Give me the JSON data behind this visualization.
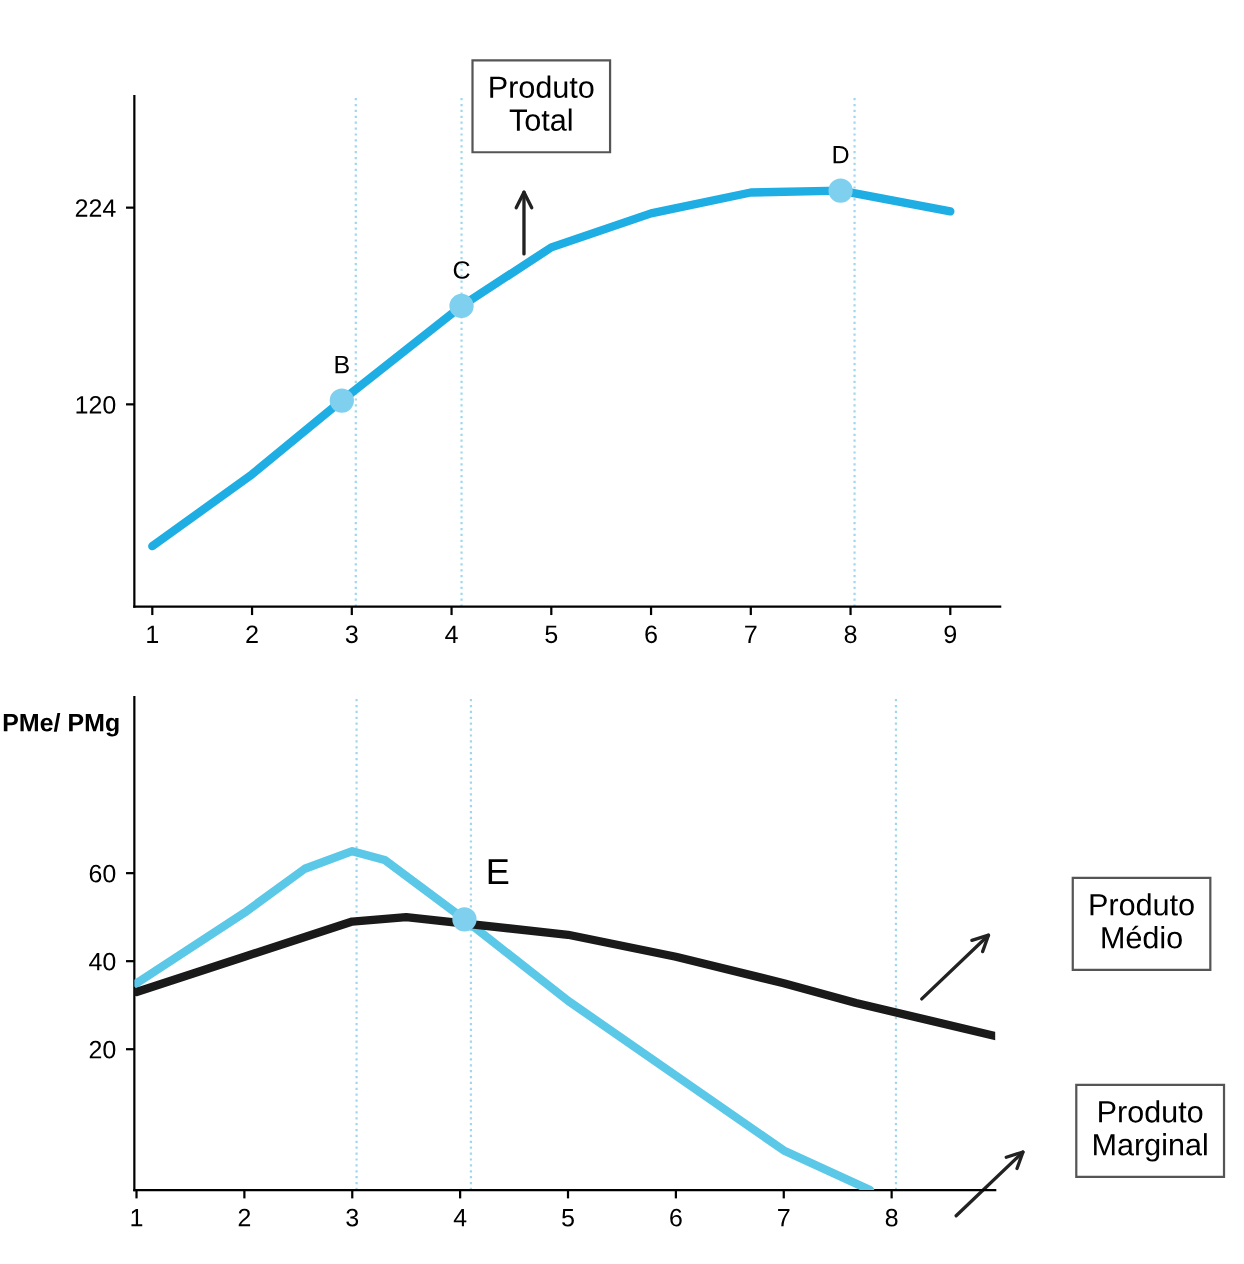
{
  "chart_data": [
    {
      "type": "line",
      "xlim": [
        0.82,
        9.5
      ],
      "ylim": [
        13,
        283
      ],
      "xticks": [
        1,
        2,
        3,
        4,
        5,
        6,
        7,
        8,
        9
      ],
      "yticks": [
        120,
        224
      ],
      "grid": false,
      "legend": false,
      "line_style": "solid",
      "series": [
        {
          "type": "line",
          "color": "#1eaee3",
          "x": [
            1,
            2,
            2.9,
            4.1,
            5,
            6,
            7,
            7.9,
            9
          ],
          "values": [
            45,
            83,
            122,
            172,
            203,
            221,
            232,
            233,
            222
          ]
        },
        {
          "type": "scatter",
          "color": "#7fd0ef",
          "marker": "circle",
          "x": [
            2.9,
            4.1,
            7.9
          ],
          "values": [
            122,
            172,
            233
          ]
        }
      ],
      "ref_lines": [
        {
          "axis": "x",
          "value": 3.04,
          "color": "#9fd8ee",
          "line_style": "dotted"
        },
        {
          "axis": "x",
          "value": 4.1,
          "color": "#9fd8ee",
          "line_style": "dotted"
        },
        {
          "axis": "x",
          "value": 8.04,
          "color": "#9fd8ee",
          "line_style": "dotted"
        }
      ],
      "annotations": [
        {
          "text": "B",
          "x": 2.9,
          "y": 122
        },
        {
          "text": "C",
          "x": 4.1,
          "y": 172
        },
        {
          "text": "D",
          "x": 7.9,
          "y": 233
        },
        "Produto\nTotal"
      ]
    },
    {
      "type": "line",
      "ylabel": "PMe/ PMg",
      "xlim": [
        0.98,
        8.96
      ],
      "ylim": [
        -12,
        100
      ],
      "xticks": [
        1,
        2,
        3,
        4,
        5,
        6,
        7,
        8
      ],
      "yticks": [
        20,
        40,
        60
      ],
      "grid": false,
      "legend": false,
      "line_style": "solid",
      "series": [
        {
          "type": "line",
          "color": "#5bc8e8",
          "x": [
            1,
            2,
            2.56,
            3,
            3.3,
            4.04,
            5,
            6,
            7,
            7.8
          ],
          "values": [
            35,
            51,
            61,
            65,
            63,
            49.5,
            31,
            14,
            -3,
            -12
          ]
        },
        {
          "type": "line",
          "color": "#1a1a1a",
          "x": [
            1,
            2,
            3,
            3.5,
            5,
            6,
            7,
            7.67,
            8.96
          ],
          "values": [
            33,
            41,
            49,
            50,
            46,
            41,
            35,
            30.5,
            23
          ]
        },
        {
          "type": "scatter",
          "color": "#7fd0ef",
          "marker": "circle",
          "x": [
            4.04
          ],
          "values": [
            49.5
          ]
        }
      ],
      "ref_lines": [
        {
          "axis": "x",
          "value": 3.04,
          "color": "#9fd8ee",
          "line_style": "dotted"
        },
        {
          "axis": "x",
          "value": 4.1,
          "color": "#9fd8ee",
          "line_style": "dotted"
        },
        {
          "axis": "x",
          "value": 8.04,
          "color": "#9fd8ee",
          "line_style": "dotted"
        }
      ],
      "annotations": [
        {
          "text": "E",
          "x": 4.04,
          "y": 49.5
        },
        "Produto\nMédio",
        "Produto\nMarginal"
      ]
    }
  ]
}
